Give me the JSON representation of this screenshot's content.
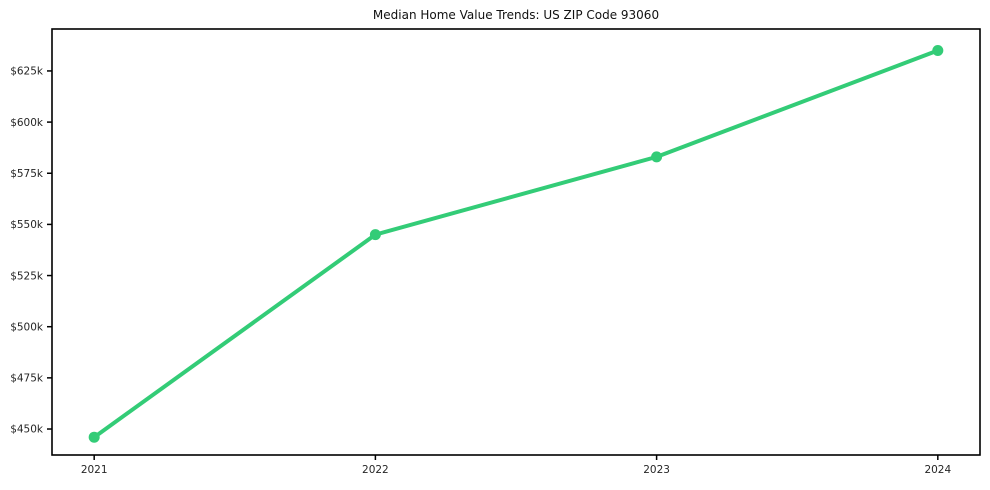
{
  "chart_data": {
    "type": "line",
    "title": "Median Home Value Trends: US ZIP Code 93060",
    "x": [
      2021,
      2022,
      2023,
      2024
    ],
    "values": [
      446000,
      545000,
      583000,
      635000
    ],
    "xlim": [
      2020.85,
      2024.15
    ],
    "ylim": [
      437300,
      645500
    ],
    "xticks": [
      {
        "value": 2021,
        "label": "2021"
      },
      {
        "value": 2022,
        "label": "2022"
      },
      {
        "value": 2023,
        "label": "2023"
      },
      {
        "value": 2024,
        "label": "2024"
      }
    ],
    "yticks": [
      {
        "value": 450000,
        "label": "$450k"
      },
      {
        "value": 475000,
        "label": "$475k"
      },
      {
        "value": 500000,
        "label": "$500k"
      },
      {
        "value": 525000,
        "label": "$525k"
      },
      {
        "value": 550000,
        "label": "$550k"
      },
      {
        "value": 575000,
        "label": "$575k"
      },
      {
        "value": 600000,
        "label": "$600k"
      },
      {
        "value": 625000,
        "label": "$625k"
      }
    ],
    "grid": false,
    "legend": "none",
    "colors": {
      "line": "#33cc77",
      "marker": "#33cc77",
      "axis": "#000000",
      "tick_label": "#262626",
      "background": "#ffffff"
    }
  }
}
